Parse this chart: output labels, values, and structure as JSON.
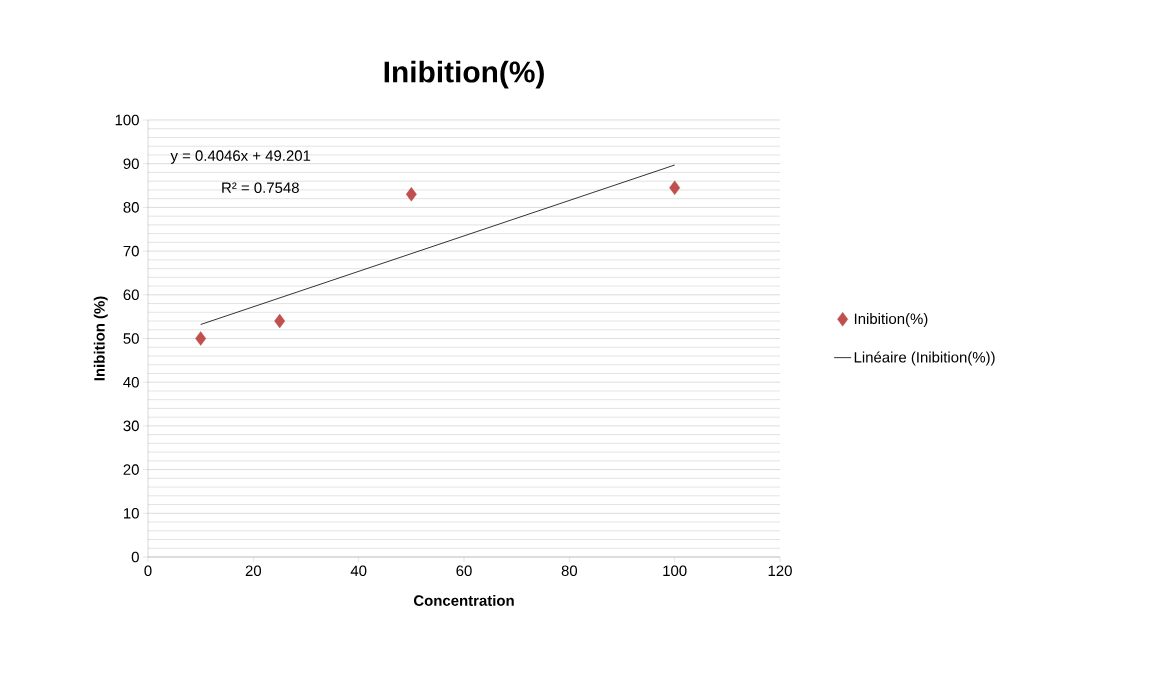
{
  "chart_data": {
    "type": "scatter",
    "title": "Inibition(%)",
    "xlabel": "Concentration",
    "ylabel": "Inibition (%)",
    "x": [
      10,
      25,
      50,
      100
    ],
    "series": [
      {
        "name": "Inibition(%)",
        "color": "#c0504d",
        "marker": "diamond",
        "values": [
          50,
          54,
          83,
          84.5
        ]
      },
      {
        "name": "Linéaire (Inibition(%))",
        "type": "line",
        "color": "#000000",
        "marker": "none",
        "x": [
          10,
          100
        ],
        "values": [
          53.2,
          89.7
        ]
      }
    ],
    "annotations": [
      "y = 0.4046x + 49.201",
      "R² = 0.7548"
    ],
    "xlim": [
      0,
      120
    ],
    "xticks": [
      0,
      20,
      40,
      60,
      80,
      100,
      120
    ],
    "ylim": [
      0,
      100
    ],
    "yticks": [
      0,
      10,
      20,
      30,
      40,
      50,
      60,
      70,
      80,
      90,
      100
    ],
    "grid": "y",
    "legend": "right"
  }
}
